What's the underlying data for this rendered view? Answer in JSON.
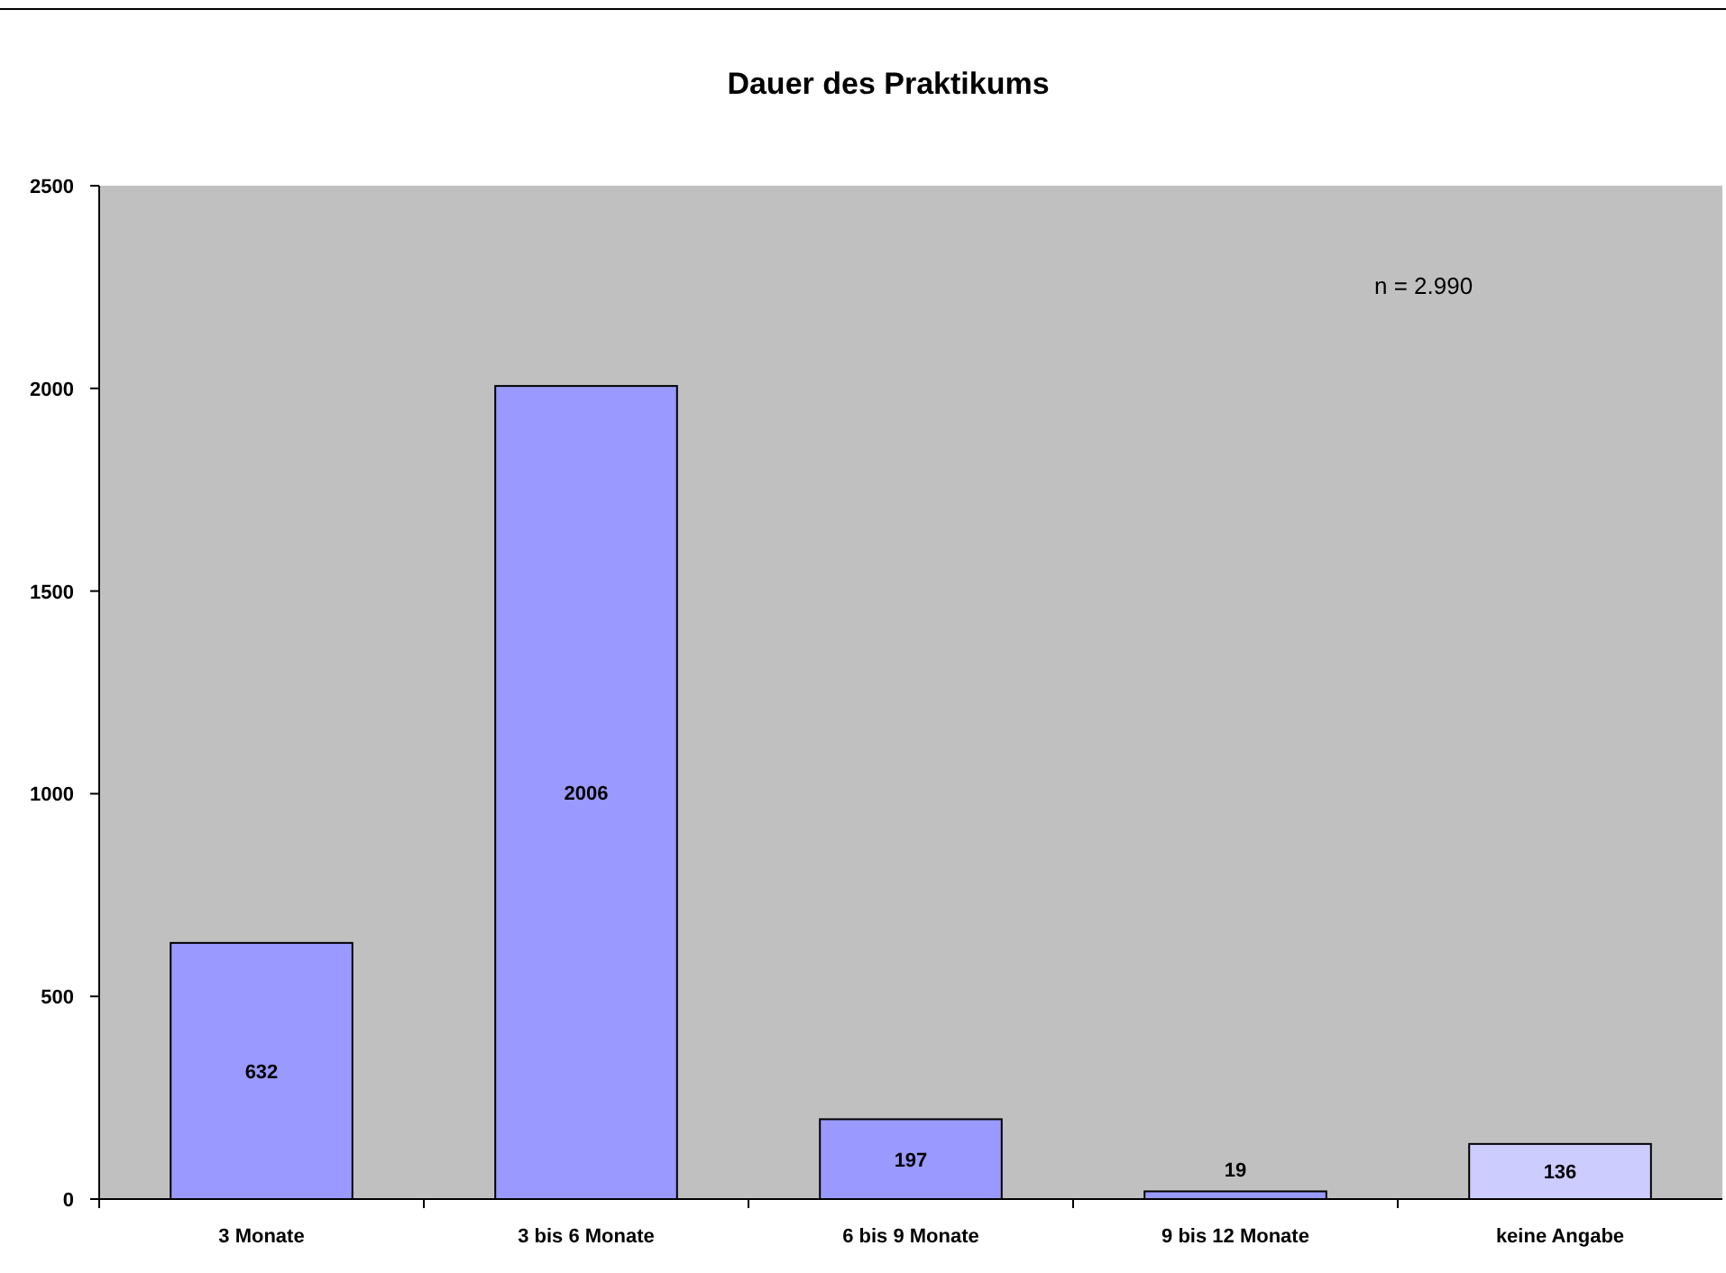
{
  "chart_data": {
    "type": "bar",
    "title": "Dauer des Praktikums",
    "categories": [
      "3 Monate",
      "3 bis 6 Monate",
      "6 bis 9 Monate",
      "9 bis 12 Monate",
      "keine Angabe"
    ],
    "values": [
      632,
      2006,
      197,
      19,
      136
    ],
    "colors": [
      "#9999ff",
      "#9999ff",
      "#9999ff",
      "#9999ff",
      "#ccccff"
    ],
    "ylim": [
      0,
      2500
    ],
    "yticks": [
      0,
      500,
      1000,
      1500,
      2000,
      2500
    ],
    "grid": false,
    "data_labels": true,
    "annotations": [
      "n = 2.990"
    ]
  }
}
